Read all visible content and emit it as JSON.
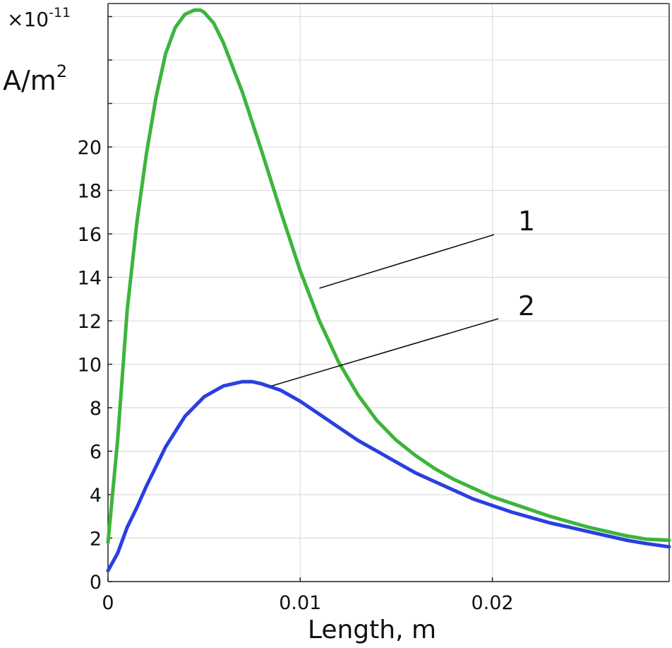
{
  "chart_data": {
    "type": "line",
    "xlabel": "Length, m",
    "y_multiplier": "×10",
    "y_multiplier_exponent": "-11",
    "y_unit": "A/m",
    "y_unit_exponent": "2",
    "xlim": [
      0,
      0.0292
    ],
    "ylim": [
      0,
      26.6
    ],
    "x_ticks": [
      0,
      0.01,
      0.02
    ],
    "x_tick_labels": [
      "0",
      "0.01",
      "0.02"
    ],
    "y_ticks": [
      0,
      2,
      4,
      6,
      8,
      10,
      12,
      14,
      16,
      18,
      20
    ],
    "y_tick_labels": [
      "0",
      "2",
      "4",
      "6",
      "8",
      "10",
      "12",
      "14",
      "16",
      "18",
      "20"
    ],
    "grid": true,
    "series": [
      {
        "name": "1",
        "color": "#3cb53c",
        "x": [
          0,
          0.0005,
          0.001,
          0.0015,
          0.002,
          0.0025,
          0.003,
          0.0035,
          0.004,
          0.0045,
          0.0048,
          0.005,
          0.0055,
          0.006,
          0.007,
          0.008,
          0.009,
          0.01,
          0.011,
          0.012,
          0.013,
          0.014,
          0.015,
          0.016,
          0.017,
          0.018,
          0.019,
          0.02,
          0.021,
          0.022,
          0.023,
          0.024,
          0.025,
          0.026,
          0.027,
          0.028,
          0.0292
        ],
        "y": [
          1.8,
          6.5,
          12.5,
          16.5,
          19.7,
          22.3,
          24.3,
          25.5,
          26.1,
          26.3,
          26.3,
          26.2,
          25.7,
          24.8,
          22.5,
          19.8,
          17.0,
          14.3,
          12.0,
          10.1,
          8.6,
          7.4,
          6.5,
          5.8,
          5.2,
          4.7,
          4.3,
          3.9,
          3.6,
          3.3,
          3.0,
          2.75,
          2.5,
          2.3,
          2.1,
          1.95,
          1.9
        ]
      },
      {
        "name": "2",
        "color": "#2a3fe0",
        "x": [
          0,
          0.0005,
          0.001,
          0.0015,
          0.002,
          0.003,
          0.004,
          0.005,
          0.006,
          0.007,
          0.0075,
          0.008,
          0.009,
          0.01,
          0.011,
          0.012,
          0.013,
          0.014,
          0.015,
          0.016,
          0.017,
          0.018,
          0.019,
          0.02,
          0.021,
          0.022,
          0.023,
          0.024,
          0.025,
          0.026,
          0.027,
          0.028,
          0.0292
        ],
        "y": [
          0.5,
          1.3,
          2.5,
          3.4,
          4.4,
          6.2,
          7.6,
          8.5,
          9.0,
          9.2,
          9.2,
          9.1,
          8.8,
          8.3,
          7.7,
          7.1,
          6.5,
          6.0,
          5.5,
          5.0,
          4.6,
          4.2,
          3.8,
          3.5,
          3.2,
          2.95,
          2.7,
          2.5,
          2.3,
          2.1,
          1.9,
          1.75,
          1.6
        ]
      }
    ],
    "annotations": [
      {
        "label": "1",
        "target_series": "1",
        "point": [
          0.011,
          13.5
        ]
      },
      {
        "label": "2",
        "target_series": "2",
        "point": [
          0.0085,
          9.0
        ]
      }
    ]
  }
}
